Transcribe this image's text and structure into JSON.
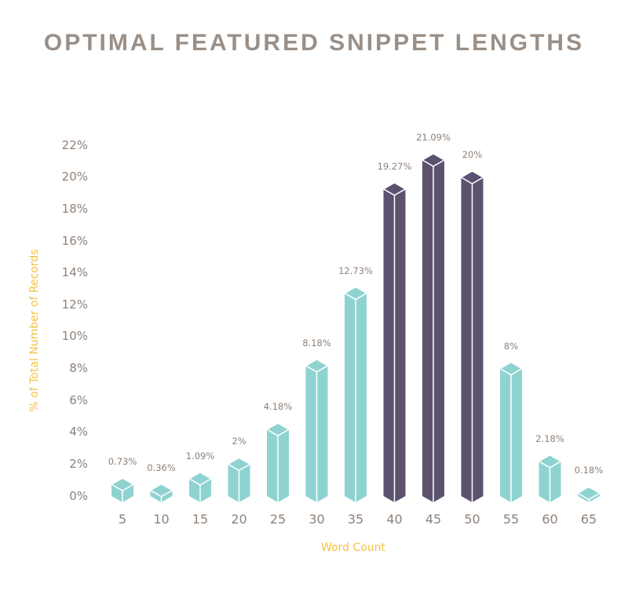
{
  "chart_data": {
    "type": "bar",
    "title": "OPTIMAL FEATURED SNIPPET LENGTHS",
    "xlabel": "Word Count",
    "ylabel": "% of Total Number of Records",
    "categories": [
      "5",
      "10",
      "15",
      "20",
      "25",
      "30",
      "35",
      "40",
      "45",
      "50",
      "55",
      "60",
      "65"
    ],
    "values": [
      0.73,
      0.36,
      1.09,
      2,
      4.18,
      8.18,
      12.73,
      19.27,
      21.09,
      20,
      8,
      2.18,
      0.18
    ],
    "value_labels": [
      "0.73%",
      "0.36%",
      "1.09%",
      "2%",
      "4.18%",
      "8.18%",
      "12.73%",
      "19.27%",
      "21.09%",
      "20%",
      "8%",
      "2.18%",
      "0.18%"
    ],
    "y_ticks": [
      "0%",
      "2%",
      "4%",
      "6%",
      "8%",
      "10%",
      "12%",
      "14%",
      "16%",
      "18%",
      "20%",
      "22%"
    ],
    "ylim": [
      0,
      22
    ],
    "grid": false,
    "highlighted_categories": [
      "40",
      "45",
      "50"
    ],
    "colors": {
      "default": "#8fd3d1",
      "highlight": "#5c5270",
      "title": "#9a8f86",
      "axis_label": "#f5c342",
      "tick": "#8f8178"
    }
  }
}
